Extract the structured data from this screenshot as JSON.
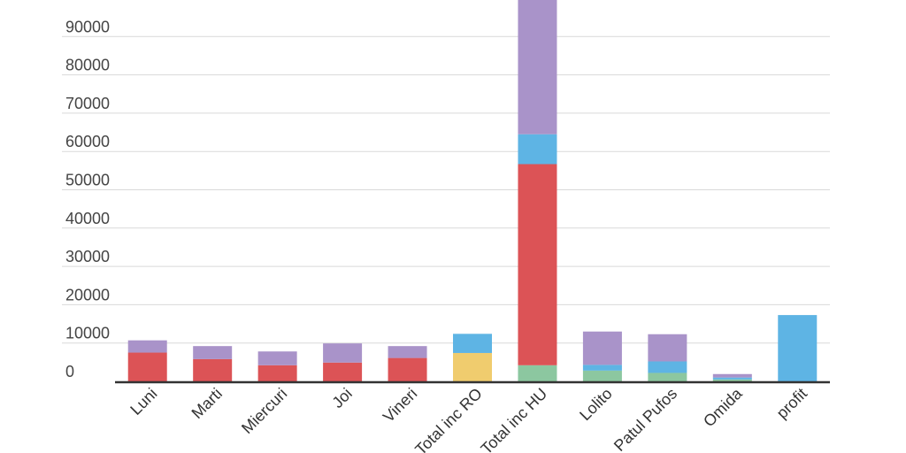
{
  "chart_data": {
    "type": "bar",
    "stacked": true,
    "categories": [
      "Luni",
      "Marti",
      "Miercuri",
      "Joi",
      "Vineri",
      "Total inc RO",
      "Total inc HU",
      "Lolito",
      "Patul Pufos",
      "Omida",
      "profit"
    ],
    "series": [
      {
        "color": "#8cc7a0",
        "values": [
          0,
          0,
          0,
          0,
          0,
          0,
          4200,
          2800,
          2200,
          500,
          0
        ]
      },
      {
        "color": "#f0cc6e",
        "values": [
          0,
          0,
          0,
          0,
          0,
          7400,
          0,
          0,
          0,
          0,
          0
        ]
      },
      {
        "color": "#dc5356",
        "values": [
          7500,
          5800,
          4200,
          4900,
          6100,
          0,
          52500,
          0,
          0,
          0,
          0
        ]
      },
      {
        "color": "#5eb4e4",
        "values": [
          0,
          0,
          0,
          0,
          0,
          5000,
          7800,
          1500,
          3000,
          500,
          17300
        ]
      },
      {
        "color": "#a993c9",
        "values": [
          3200,
          3400,
          3600,
          5000,
          3100,
          0,
          37000,
          8700,
          7100,
          900,
          0
        ]
      }
    ],
    "ylim": [
      0,
      100000
    ],
    "yticks": [
      "0",
      "10000",
      "20000",
      "30000",
      "40000",
      "50000",
      "60000",
      "70000",
      "80000",
      "90000"
    ],
    "grid": true,
    "legend": "none",
    "colors": {
      "grid": "#d9d9d9",
      "axis": "#333333",
      "text": "#444444"
    }
  }
}
